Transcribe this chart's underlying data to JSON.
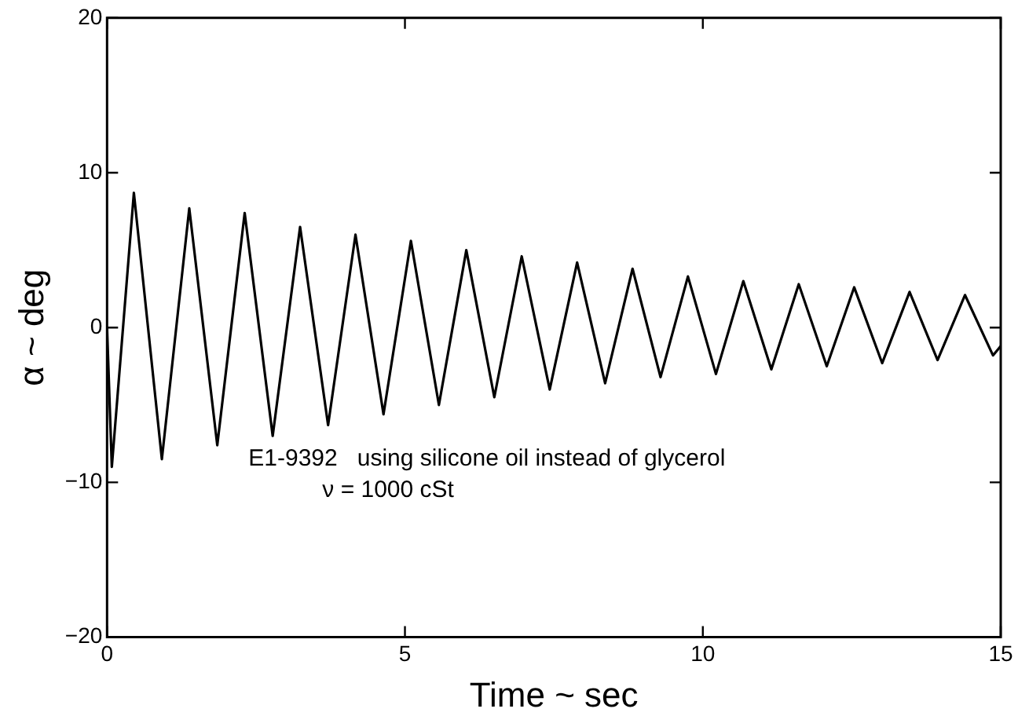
{
  "chart_data": {
    "type": "line",
    "xlabel": "Time ~ sec",
    "ylabel": "α ~ deg",
    "x": [
      0,
      0.08,
      0.45,
      0.92,
      1.38,
      1.85,
      2.31,
      2.78,
      3.24,
      3.71,
      4.17,
      4.64,
      5.1,
      5.57,
      6.03,
      6.5,
      6.96,
      7.43,
      7.89,
      8.36,
      8.82,
      9.29,
      9.75,
      10.22,
      10.68,
      11.15,
      11.61,
      12.08,
      12.54,
      13.01,
      13.47,
      13.94,
      14.4,
      14.87,
      15
    ],
    "series": [
      {
        "color": "#000000",
        "values": [
          0,
          -9,
          8.7,
          -8.5,
          7.7,
          -7.6,
          7.4,
          -7,
          6.5,
          -6.3,
          6,
          -5.6,
          5.6,
          -5,
          5,
          -4.5,
          4.6,
          -4,
          4.2,
          -3.6,
          3.8,
          -3.2,
          3.3,
          -3,
          3,
          -2.7,
          2.8,
          -2.5,
          2.6,
          -2.3,
          2.3,
          -2.1,
          2.1,
          -1.8,
          -1.2
        ]
      }
    ],
    "xlim": [
      0,
      15
    ],
    "xticks": [
      0,
      5,
      10,
      15
    ],
    "ylim": [
      -20,
      20
    ],
    "yticks": [
      -20,
      -10,
      0,
      10,
      20
    ],
    "grid": false,
    "legend": false,
    "marker": "none",
    "line_style": "solid",
    "annotations": [
      "E1-9392   using silicone oil instead of glycerol",
      "ν = 1000 cSt"
    ]
  }
}
